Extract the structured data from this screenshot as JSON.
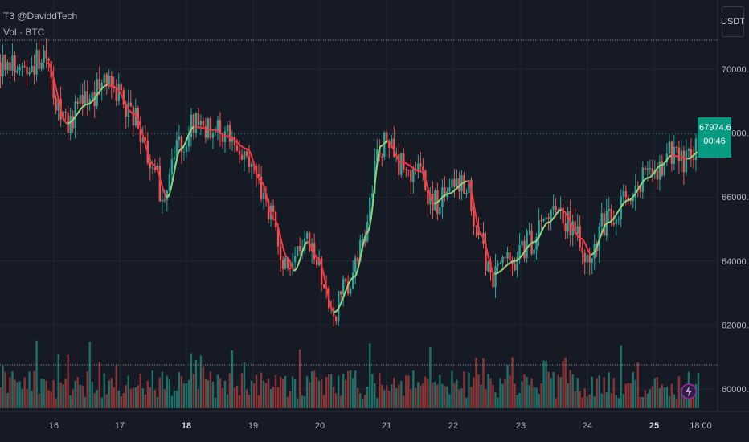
{
  "legend": {
    "indicator": "T3 @DaviddTech",
    "volume": "Vol · BTC"
  },
  "currency_button": "USDT",
  "last_price": {
    "value": "67974.6",
    "countdown": "00:46"
  },
  "colors": {
    "background": "#161a25",
    "up": "#26a69a",
    "down": "#ef5350",
    "t3_down": "#f23645",
    "t3_up": "#8bd17f",
    "grid": "#232632",
    "price_line": "#089981"
  },
  "chart_data": {
    "type": "candlestick",
    "price_axis": {
      "min": 59500,
      "max": 71500,
      "ticks": [
        70000,
        68000,
        66000,
        64000,
        62000,
        60000
      ]
    },
    "time_axis": {
      "ticks": [
        "16",
        "17",
        "18",
        "19",
        "20",
        "21",
        "22",
        "23",
        "24",
        "25",
        "18:00"
      ],
      "bold": [
        "18",
        "25"
      ]
    },
    "t3_curve": [
      [
        0,
        70200
      ],
      [
        0.3,
        68300
      ],
      [
        0.6,
        68900
      ],
      [
        0.9,
        69500
      ],
      [
        1.0,
        69450
      ],
      [
        1.3,
        68600
      ],
      [
        1.6,
        67000
      ],
      [
        1.8,
        66000
      ],
      [
        2.0,
        67500
      ],
      [
        2.2,
        68200
      ],
      [
        2.5,
        68100
      ],
      [
        2.7,
        67900
      ],
      [
        3.0,
        67500
      ],
      [
        3.2,
        66500
      ],
      [
        3.4,
        65300
      ],
      [
        3.6,
        64100
      ],
      [
        3.7,
        63700
      ],
      [
        3.9,
        64600
      ],
      [
        4.05,
        64100
      ],
      [
        4.3,
        62400
      ],
      [
        4.6,
        63500
      ],
      [
        4.8,
        64900
      ],
      [
        5.0,
        67600
      ],
      [
        5.1,
        67750
      ],
      [
        5.3,
        67100
      ],
      [
        5.6,
        66800
      ],
      [
        5.8,
        65800
      ],
      [
        6.0,
        66100
      ],
      [
        6.3,
        66500
      ],
      [
        6.5,
        64800
      ],
      [
        6.7,
        63600
      ],
      [
        7.0,
        64000
      ],
      [
        7.3,
        64600
      ],
      [
        7.5,
        65200
      ],
      [
        7.7,
        65600
      ],
      [
        8.0,
        64700
      ],
      [
        8.15,
        64200
      ],
      [
        8.4,
        65200
      ],
      [
        8.7,
        65900
      ],
      [
        9.0,
        66600
      ],
      [
        9.2,
        67000
      ],
      [
        9.35,
        67300
      ],
      [
        9.6,
        67200
      ],
      [
        9.75,
        67400
      ]
    ],
    "last_price": 67974.6
  }
}
